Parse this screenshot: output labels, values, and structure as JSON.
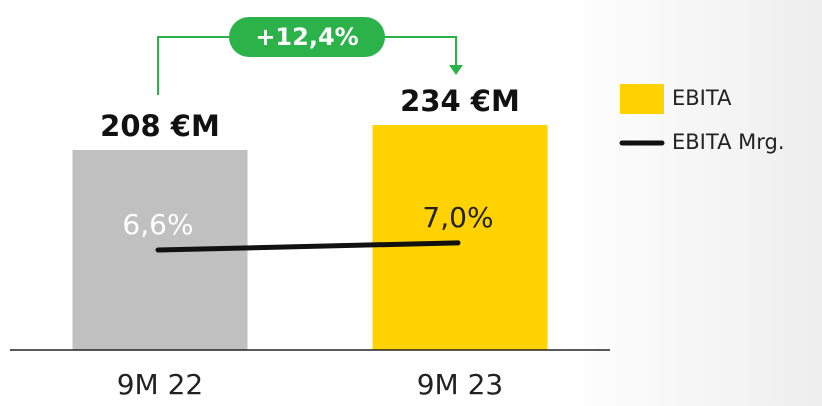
{
  "chart_data": {
    "type": "bar-line",
    "categories": [
      "9M 22",
      "9M 23"
    ],
    "series": [
      {
        "name": "EBITA",
        "type": "bar",
        "color": "#ffd200",
        "colors": [
          "#c0c0c0",
          "#ffd200"
        ],
        "values": [
          208,
          234
        ],
        "value_labels": [
          "208 €M",
          "234 €M"
        ]
      },
      {
        "name": "EBITA Mrg.",
        "type": "line",
        "axis": "y2",
        "color": "#111111",
        "values": [
          6.6,
          7.0
        ],
        "value_labels": [
          "6,6%",
          "7,0%"
        ],
        "label_colors": [
          "#ffffff",
          "#222222"
        ]
      }
    ],
    "ylim": [
      0,
      260
    ],
    "y2lim": [
      1,
      15
    ],
    "annotation": {
      "text": "+12,4%",
      "color": "#2bb34a"
    },
    "legend": "right"
  }
}
